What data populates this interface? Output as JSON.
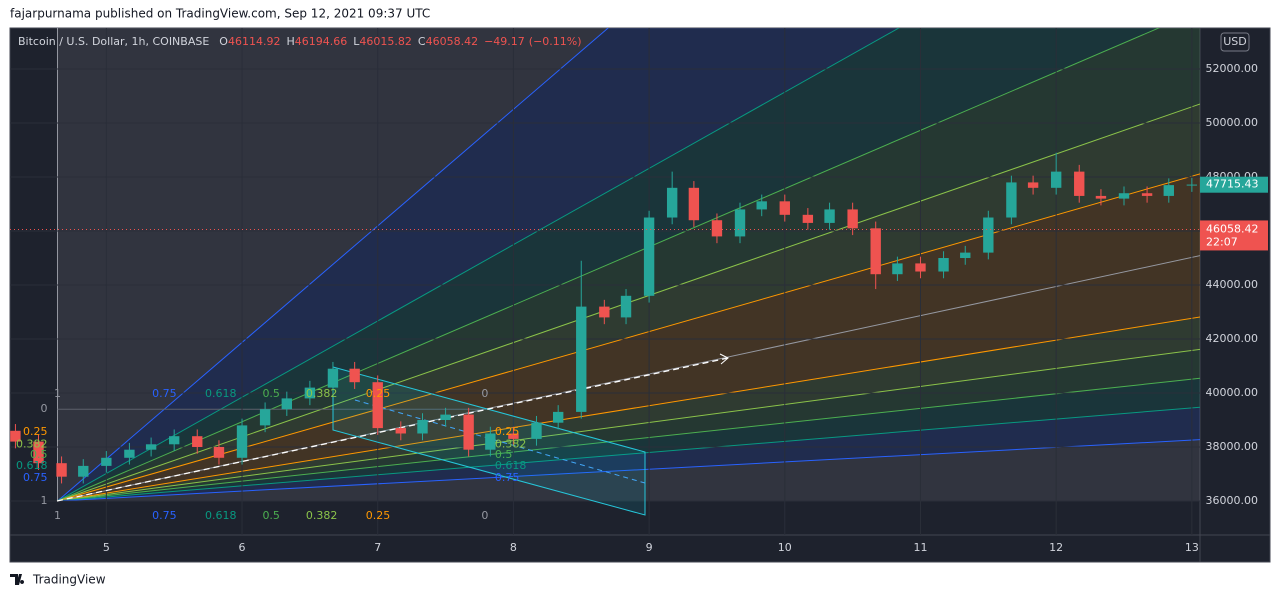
{
  "header": "fajarpurnama published on TradingView.com, Sep 12, 2021 09:37 UTC",
  "footer": "TradingView",
  "chart_data": {
    "type": "candlestick",
    "symbol": "Bitcoin / U.S. Dollar, 1h, COINBASE",
    "ohlc_legend": [
      {
        "label": "O",
        "value": 46114.92
      },
      {
        "label": "H",
        "value": 46194.66
      },
      {
        "label": "L",
        "value": 46015.82
      },
      {
        "label": "C",
        "value": 46058.42
      }
    ],
    "change": {
      "value": -49.17,
      "label": "−49.17"
    },
    "change_percent": {
      "value": -0.11,
      "label": "(−0.11%)"
    },
    "currency": "USD",
    "last_price": 47715.43,
    "current_price": 46058.42,
    "countdown": "22:07",
    "up_color": "#26a69a",
    "down_color": "#ef5350",
    "grid": true,
    "xlim": [
      4.29,
      13.06
    ],
    "xticks": [
      5,
      6,
      7,
      8,
      9,
      10,
      11,
      12,
      13
    ],
    "ylim": [
      34740,
      53520
    ],
    "yticks": [
      {
        "value": 36000,
        "label": "36000.00"
      },
      {
        "value": 38000,
        "label": "38000.00"
      },
      {
        "value": 40000,
        "label": "40000.00"
      },
      {
        "value": 42000,
        "label": "42000.00"
      },
      {
        "value": 44000,
        "label": "44000.00"
      },
      {
        "value": 46000,
        "label": "46000.00"
      },
      {
        "value": 48000,
        "label": "48000.00"
      },
      {
        "value": 50000,
        "label": "50000.00"
      },
      {
        "value": 52000,
        "label": "52000.00"
      }
    ],
    "x": [
      4.33,
      4.5,
      4.67,
      4.83,
      5,
      5.17,
      5.33,
      5.5,
      5.67,
      5.83,
      6,
      6.17,
      6.33,
      6.5,
      6.67,
      6.83,
      7,
      7.17,
      7.33,
      7.5,
      7.67,
      7.83,
      8,
      8.17,
      8.33,
      8.5,
      8.67,
      8.83,
      9,
      9.17,
      9.33,
      9.5,
      9.67,
      9.83,
      10,
      10.17,
      10.33,
      10.5,
      10.67,
      10.83,
      11,
      11.17,
      11.33,
      11.5,
      11.67,
      11.83,
      12,
      12.17,
      12.33,
      12.5,
      12.67,
      12.83,
      13
    ],
    "open": [
      38600,
      38200,
      37400,
      36900,
      37300,
      37600,
      37900,
      38100,
      38400,
      38000,
      37600,
      38800,
      39400,
      39800,
      40200,
      40900,
      40400,
      38700,
      38500,
      39000,
      39200,
      37900,
      38500,
      38300,
      38900,
      39300,
      43200,
      42800,
      43600,
      46500,
      47600,
      46400,
      45800,
      46800,
      47100,
      46600,
      46300,
      46800,
      46100,
      44400,
      44800,
      44500,
      45000,
      45200,
      46500,
      47800,
      47600,
      48200,
      47300,
      47200,
      47400,
      47300,
      47700
    ],
    "high": [
      38850,
      38450,
      37650,
      37550,
      37850,
      38150,
      38350,
      38650,
      38650,
      38250,
      39050,
      39650,
      40050,
      40450,
      41150,
      41150,
      40650,
      38950,
      39250,
      39450,
      39450,
      38750,
      38750,
      39150,
      39550,
      44900,
      43450,
      43850,
      46750,
      48200,
      47850,
      46650,
      47050,
      47350,
      47350,
      46850,
      47050,
      47050,
      46350,
      45050,
      45050,
      45250,
      45450,
      46750,
      48050,
      48050,
      48900,
      48450,
      47550,
      47650,
      47650,
      47950,
      47970
    ],
    "low": [
      37950,
      37150,
      36650,
      36650,
      37050,
      37350,
      37650,
      37850,
      37750,
      37350,
      37350,
      38550,
      39150,
      39550,
      39950,
      40150,
      38450,
      38250,
      38250,
      38750,
      37650,
      37650,
      38050,
      38050,
      38650,
      39050,
      42550,
      42550,
      43350,
      46250,
      46150,
      45550,
      45550,
      46550,
      46350,
      46050,
      46050,
      45850,
      43850,
      44150,
      44250,
      44250,
      44750,
      44950,
      46250,
      47350,
      47350,
      47050,
      46950,
      46950,
      47050,
      47050,
      47450
    ],
    "close": [
      38200,
      37400,
      36900,
      37300,
      37600,
      37900,
      38100,
      38400,
      38000,
      37600,
      38800,
      39400,
      39800,
      40200,
      40900,
      40400,
      38700,
      38500,
      39000,
      39200,
      37900,
      38500,
      38300,
      38900,
      39300,
      43200,
      42800,
      43600,
      46500,
      47600,
      46400,
      45800,
      46800,
      47100,
      46600,
      46300,
      46800,
      46100,
      44400,
      44800,
      44500,
      45000,
      45200,
      46500,
      47800,
      47600,
      48200,
      47300,
      47200,
      47400,
      47300,
      47700,
      47720
    ],
    "fib_fan": {
      "levels": [
        0,
        0.25,
        0.382,
        0.5,
        0.618,
        0.75,
        1
      ],
      "colors": [
        "#9598a1",
        "#ff9800",
        "#8bc34a",
        "#4caf50",
        "#089981",
        "#2962ff",
        "#9598a1"
      ]
    }
  }
}
